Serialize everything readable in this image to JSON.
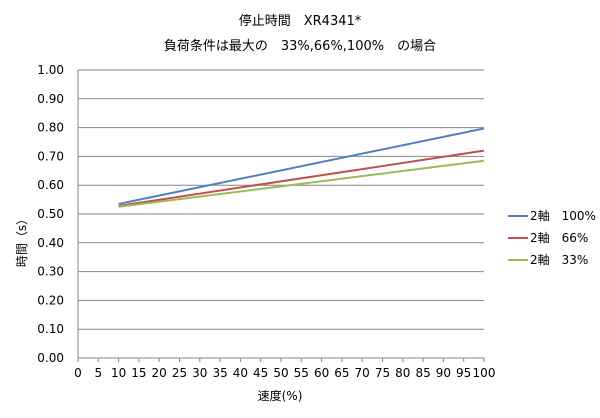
{
  "chart_data": {
    "type": "line",
    "title": "停止時間　XR4341*",
    "subtitle": "負荷条件は最大の　33%,66%,100%　の場合",
    "xlabel": "速度(%)",
    "ylabel": "時間（s）",
    "xlim": [
      0,
      100
    ],
    "ylim": [
      0,
      1
    ],
    "x_ticks": [
      "0",
      "5",
      "10",
      "15",
      "20",
      "25",
      "30",
      "35",
      "40",
      "45",
      "50",
      "55",
      "60",
      "65",
      "70",
      "75",
      "80",
      "85",
      "90",
      "95",
      "100"
    ],
    "y_ticks": [
      "0.00",
      "0.10",
      "0.20",
      "0.30",
      "0.40",
      "0.50",
      "0.60",
      "0.70",
      "0.80",
      "0.90",
      "1.00"
    ],
    "grid": "horizontal",
    "legend_position": "right",
    "series": [
      {
        "name": "2軸　100%",
        "color": "#4F81BD",
        "x": [
          10,
          100
        ],
        "y": [
          0.535,
          0.797
        ]
      },
      {
        "name": "2軸　66%",
        "color": "#C0504D",
        "x": [
          10,
          100
        ],
        "y": [
          0.528,
          0.72
        ]
      },
      {
        "name": "2軸　33%",
        "color": "#9BBB59",
        "x": [
          10,
          100
        ],
        "y": [
          0.525,
          0.685
        ]
      }
    ]
  }
}
